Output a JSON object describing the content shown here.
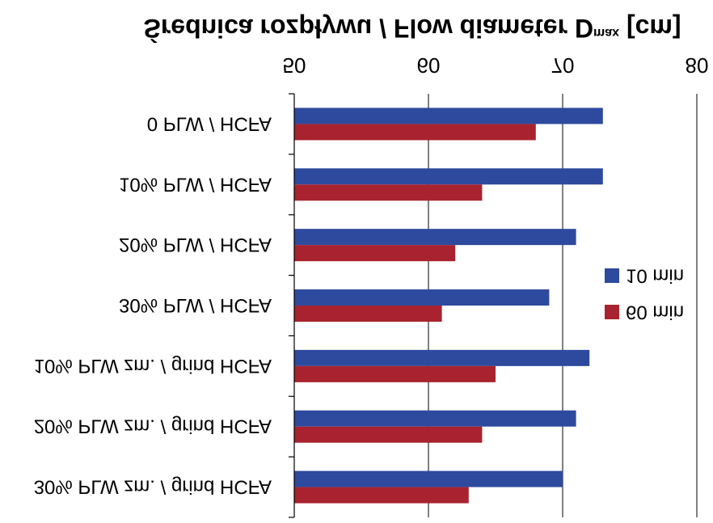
{
  "chart_data": {
    "type": "bar",
    "orientation": "horizontal",
    "title_main": "Średnica rozpływu / Flow diameter D",
    "title_sub": "max",
    "title_unit": " [cm]",
    "xlabel": "",
    "ylabel": "",
    "xlim": [
      50,
      80
    ],
    "xticks": [
      50,
      60,
      70,
      80
    ],
    "x_tick_labels": [
      "50",
      "60",
      "70",
      "80"
    ],
    "grid": "vertical",
    "legend_position": "right",
    "categories": [
      "0 PLW / HCFA",
      "10% PLW / HCFA",
      "20% PLW / HCFA",
      "30% PLW / HCFA",
      "10% PLW zm. / grind HCFA",
      "20% PLW zm. / grind HCFA",
      "30% PLW zm. / grind HCFA"
    ],
    "series": [
      {
        "name": "10 min",
        "color": "#2e4a9e",
        "values": [
          73,
          73,
          71,
          69,
          72,
          71,
          70
        ]
      },
      {
        "name": "60 min",
        "color": "#a8232f",
        "values": [
          68,
          64,
          62,
          61,
          65,
          64,
          63
        ]
      }
    ]
  }
}
